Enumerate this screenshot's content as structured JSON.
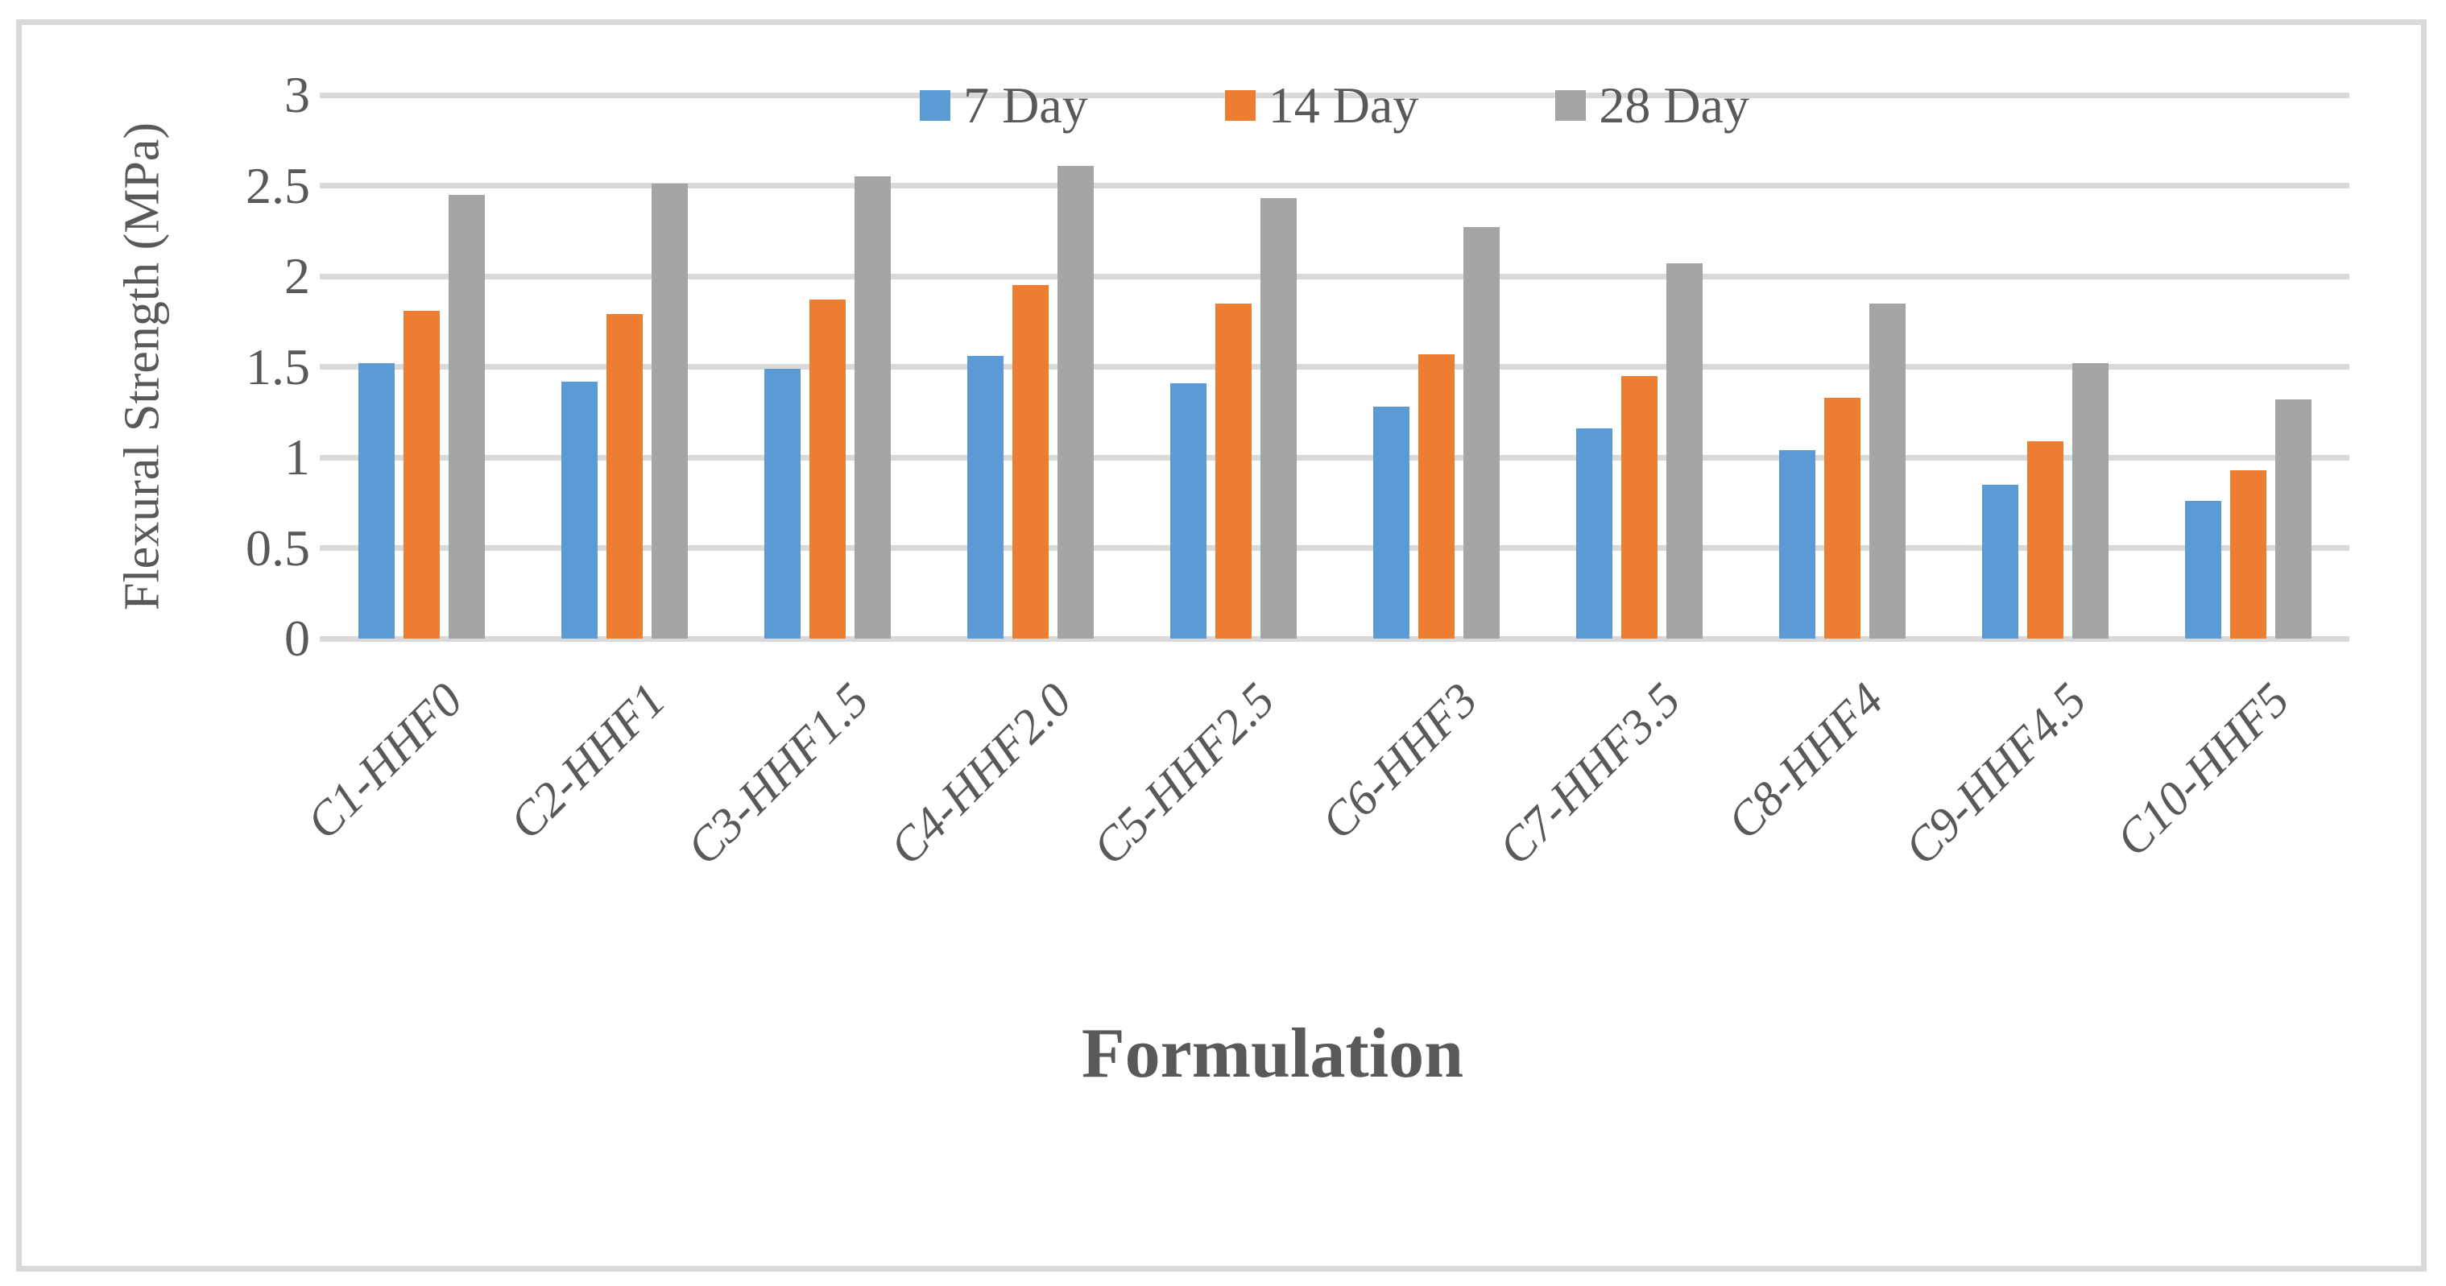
{
  "chart_data": {
    "type": "bar",
    "title": "",
    "xlabel": "Formulation",
    "ylabel": "Flexural Strength (MPa)",
    "categories": [
      "C1-HHF0",
      "C2-HHF1",
      "C3-HHF1.5",
      "C4-HHF2.0",
      "C5-HHF2.5",
      "C6-HHF3",
      "C7-HHF3.5",
      "C8-HHF4",
      "C9-HHF4.5",
      "C10-HHF5"
    ],
    "series": [
      {
        "name": "7 Day",
        "color": "#5B9BD5",
        "values": [
          1.52,
          1.42,
          1.49,
          1.56,
          1.41,
          1.28,
          1.16,
          1.04,
          0.85,
          0.76
        ]
      },
      {
        "name": "14 Day",
        "color": "#ED7D31",
        "values": [
          1.81,
          1.79,
          1.87,
          1.95,
          1.85,
          1.57,
          1.45,
          1.33,
          1.09,
          0.93
        ]
      },
      {
        "name": "28 Day",
        "color": "#A5A5A5",
        "values": [
          2.45,
          2.51,
          2.55,
          2.61,
          2.43,
          2.27,
          2.07,
          1.85,
          1.52,
          1.32
        ]
      }
    ],
    "ylim": [
      0,
      3
    ],
    "ytick_labels": [
      "0",
      "0.5",
      "1",
      "1.5",
      "2",
      "2.5",
      "3"
    ],
    "grid": true,
    "legend_position": "top"
  },
  "colors": {
    "gridline": "#D9D9D9",
    "chart_border": "#D9D9D9",
    "axis_text": "#595959",
    "background": "#FFFFFF"
  }
}
